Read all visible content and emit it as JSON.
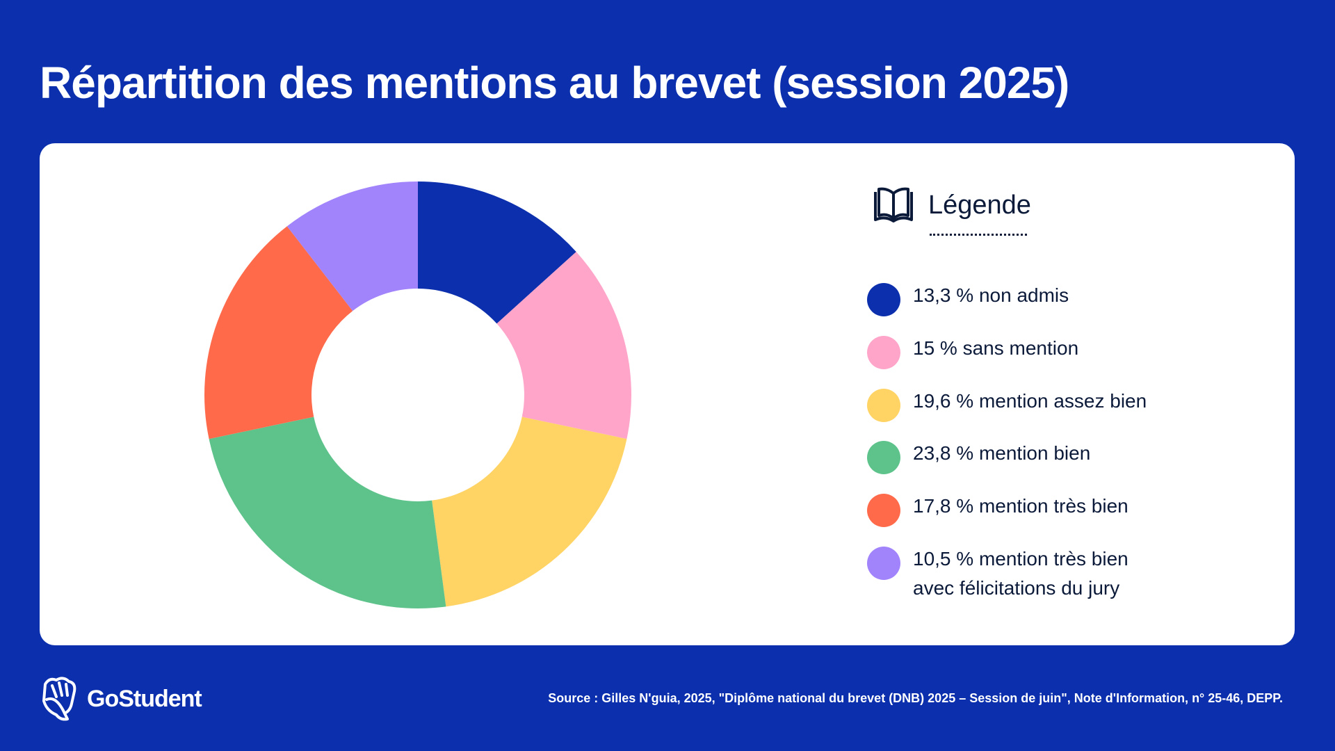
{
  "title": "Répartition des mentions au brevet (session 2025)",
  "legend_title": "Légende",
  "chart_data": {
    "type": "pie",
    "variant": "donut",
    "title": "Répartition des mentions au brevet (session 2025)",
    "legend_placement": "right",
    "slices": [
      {
        "label": "13,3 % non admis",
        "value": 13.3,
        "color": "#0b2fad"
      },
      {
        "label": "15 % sans mention",
        "value": 15,
        "color": "#ffa5c9"
      },
      {
        "label": "19,6 % mention assez bien",
        "value": 19.6,
        "color": "#ffd364"
      },
      {
        "label": "23,8 % mention bien",
        "value": 23.8,
        "color": "#5dc38b"
      },
      {
        "label": "17,8 % mention très bien",
        "value": 17.8,
        "color": "#ff6a4b"
      },
      {
        "label": "10,5 % mention très bien avec félicitations du jury",
        "value": 10.5,
        "color": "#a183fb"
      }
    ]
  },
  "footer": {
    "logo": "GoStudent",
    "source": "Source : Gilles N'guia, 2025, \"Diplôme national du brevet (DNB) 2025 – Session de juin\", Note d'Information, n° 25-46, DEPP."
  }
}
